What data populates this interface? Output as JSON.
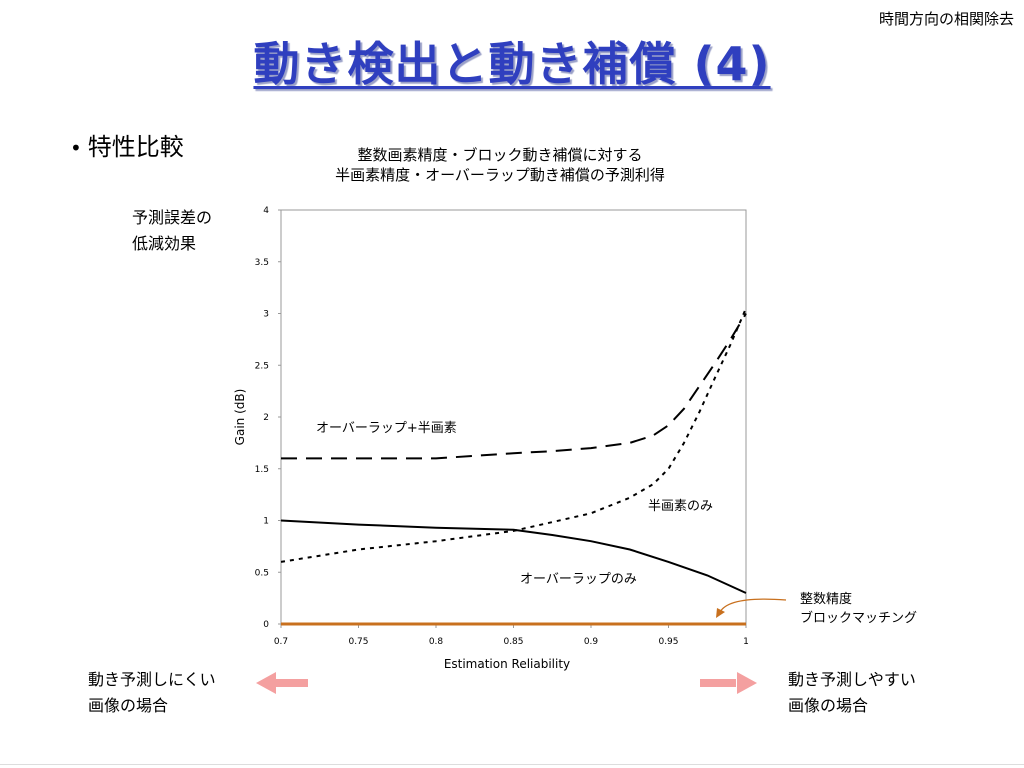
{
  "corner_label": "時間方向の相関除去",
  "slide_title": "動き検出と動き補償 (4)",
  "bullet": "特性比較",
  "chart_title_line1": "整数画素精度・ブロック動き補償に対する",
  "chart_title_line2": "半画素精度・オーバーラップ動き補償の予測利得",
  "y_caption_line1": "予測誤差の",
  "y_caption_line2": "低減効果",
  "left_caption_line1": "動き予測しにくい",
  "left_caption_line2": "画像の場合",
  "right_caption_line1": "動き予測しやすい",
  "right_caption_line2": "画像の場合",
  "baseline_annotation_line1": "整数精度",
  "baseline_annotation_line2": "ブロックマッチング",
  "colors": {
    "title": "#2f3fbf",
    "baseline": "#c8701e",
    "arrow": "#f4a0a0"
  },
  "chart_data": {
    "type": "line",
    "xlabel": "Estimation Reliability",
    "ylabel": "Gain (dB)",
    "xlim": [
      0.7,
      1.0
    ],
    "ylim": [
      0,
      4
    ],
    "x_ticks": [
      "0.7",
      "0.75",
      "0.8",
      "0.85",
      "0.9",
      "0.95",
      "1"
    ],
    "y_ticks": [
      "0",
      "0.5",
      "1",
      "1.5",
      "2",
      "2.5",
      "3",
      "3.5",
      "4"
    ],
    "series": [
      {
        "name": "オーバーラップ+半画素",
        "style": "dashed",
        "x": [
          0.7,
          0.75,
          0.8,
          0.85,
          0.875,
          0.9,
          0.925,
          0.94,
          0.95,
          0.96,
          0.97,
          0.98,
          0.99,
          1.0
        ],
        "y": [
          1.6,
          1.6,
          1.6,
          1.65,
          1.67,
          1.7,
          1.75,
          1.82,
          1.92,
          2.08,
          2.3,
          2.52,
          2.75,
          3.0
        ]
      },
      {
        "name": "半画素のみ",
        "style": "dotted",
        "x": [
          0.7,
          0.75,
          0.8,
          0.85,
          0.9,
          0.925,
          0.94,
          0.95,
          0.96,
          0.97,
          0.98,
          0.99,
          1.0
        ],
        "y": [
          0.6,
          0.72,
          0.8,
          0.9,
          1.07,
          1.22,
          1.35,
          1.5,
          1.75,
          2.05,
          2.38,
          2.7,
          3.05
        ]
      },
      {
        "name": "オーバーラップのみ",
        "style": "solid",
        "x": [
          0.7,
          0.75,
          0.8,
          0.85,
          0.875,
          0.9,
          0.925,
          0.95,
          0.975,
          1.0
        ],
        "y": [
          1.0,
          0.96,
          0.93,
          0.91,
          0.86,
          0.8,
          0.72,
          0.6,
          0.47,
          0.3
        ]
      },
      {
        "name": "整数精度 ブロックマッチング",
        "style": "baseline",
        "x": [
          0.7,
          1.0
        ],
        "y": [
          0.0,
          0.0
        ]
      }
    ]
  }
}
